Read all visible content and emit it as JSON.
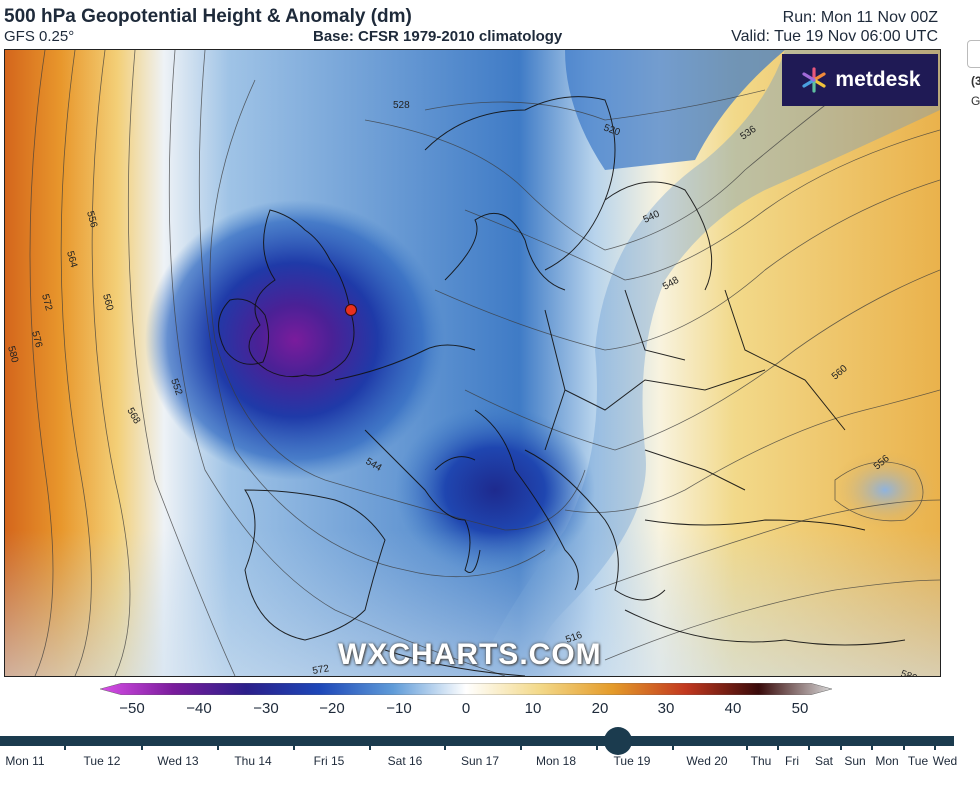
{
  "header": {
    "title": "500 hPa Geopotential Height & Anomaly (dm)",
    "model": "GFS 0.25°",
    "base": "Base: CFSR 1979-2010 climatology",
    "run": "Run: Mon 11 Nov 00Z",
    "valid": "Valid: Tue 19 Nov 06:00 UTC"
  },
  "brand": {
    "name": "metdesk"
  },
  "watermark": "WXCHARTS.COM",
  "map": {
    "contour_labels": [
      {
        "text": "520"
      },
      {
        "text": "528"
      },
      {
        "text": "536"
      },
      {
        "text": "540"
      },
      {
        "text": "548"
      },
      {
        "text": "556"
      },
      {
        "text": "564"
      },
      {
        "text": "560"
      },
      {
        "text": "572"
      },
      {
        "text": "576"
      },
      {
        "text": "580"
      },
      {
        "text": "552"
      },
      {
        "text": "568"
      },
      {
        "text": "544"
      },
      {
        "text": "560"
      },
      {
        "text": "556"
      },
      {
        "text": "516"
      },
      {
        "text": "572"
      },
      {
        "text": "580"
      }
    ],
    "marker_color": "#e8301e"
  },
  "colorbar": {
    "ticks": [
      "−50",
      "−40",
      "−30",
      "−20",
      "−10",
      "0",
      "10",
      "20",
      "30",
      "40",
      "50"
    ],
    "colors": [
      "#d94fe8",
      "#7a1c9c",
      "#2b1f8a",
      "#1d47b8",
      "#5f9bd8",
      "#ffffff",
      "#f3d98a",
      "#e49b2a",
      "#c2381f",
      "#3a0b0b",
      "#d8d8d8"
    ]
  },
  "sidebar": {
    "t1": "(3",
    "t2": "G"
  },
  "timeline": {
    "days": [
      "Mon 11",
      "Tue 12",
      "Wed 13",
      "Thu 14",
      "Fri 15",
      "Sat 16",
      "Sun 17",
      "Mon 18",
      "Tue 19",
      "Wed 20",
      "Thu",
      "Fri",
      "Sat",
      "Sun",
      "Mon",
      "Tue",
      "Wed"
    ],
    "selected": "Tue 19",
    "handle_color": "#1b3b4e"
  }
}
